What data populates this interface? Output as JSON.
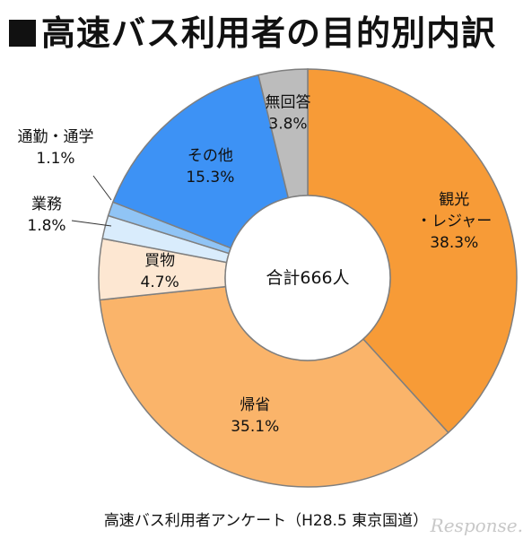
{
  "title_text": "高速バス利用者の目的別内訳",
  "center_label": "合計666人",
  "footer": "高速バス利用者アンケート（H28.5 東京国道）",
  "watermark": "Response.",
  "chart_data": {
    "type": "pie",
    "title": "高速バス利用者の目的別内訳",
    "total_label": "合計666人",
    "slices": [
      {
        "label": "観光・レジャー",
        "value": 38.3,
        "value_label": "38.3%",
        "color": "#f79b37"
      },
      {
        "label": "帰省",
        "value": 35.1,
        "value_label": "35.1%",
        "color": "#fab46a"
      },
      {
        "label": "買物",
        "value": 4.7,
        "value_label": "4.7%",
        "color": "#fde7d2"
      },
      {
        "label": "業務",
        "value": 1.8,
        "value_label": "1.8%",
        "color": "#d9ecfc"
      },
      {
        "label": "通勤・通学",
        "value": 1.1,
        "value_label": "1.1%",
        "color": "#90c4f5"
      },
      {
        "label": "その他",
        "value": 15.3,
        "value_label": "15.3%",
        "color": "#3d92f5"
      },
      {
        "label": "無回答",
        "value": 3.8,
        "value_label": "3.8%",
        "color": "#bcbcbc"
      }
    ],
    "slice_label_lines": [
      [
        "観光",
        "・レジャー"
      ],
      [
        "帰省"
      ],
      [
        "買物"
      ],
      [
        "業務"
      ],
      [
        "通勤・通学"
      ],
      [
        "その他"
      ],
      [
        "無回答"
      ]
    ]
  }
}
